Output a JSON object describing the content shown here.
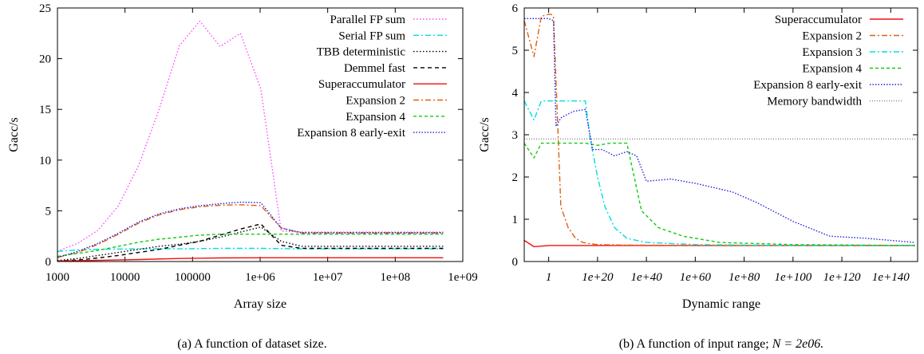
{
  "chart_data": [
    {
      "type": "line",
      "xscale": "log",
      "xlim": [
        1000,
        1000000000
      ],
      "ylim": [
        0,
        25
      ],
      "xlabel": "Array size",
      "ylabel": "Gacc/s",
      "xticks": [
        {
          "v": 1000,
          "label": "1000"
        },
        {
          "v": 10000,
          "label": "10000"
        },
        {
          "v": 100000,
          "label": "100000"
        },
        {
          "v": 1000000,
          "label": "1e+06"
        },
        {
          "v": 10000000,
          "label": "1e+07"
        },
        {
          "v": 100000000,
          "label": "1e+08"
        },
        {
          "v": 1000000000,
          "label": "1e+09"
        }
      ],
      "yticks": [
        {
          "v": 0,
          "label": "0"
        },
        {
          "v": 5,
          "label": "5"
        },
        {
          "v": 10,
          "label": "10"
        },
        {
          "v": 15,
          "label": "15"
        },
        {
          "v": 20,
          "label": "20"
        },
        {
          "v": 25,
          "label": "25"
        }
      ],
      "legend_position": "top-right",
      "caption": "(a) A function of dataset size.",
      "series": [
        {
          "name": "Parallel FP sum",
          "color": "#ff44ff",
          "dash": "1.5,2.5",
          "x": [
            1000,
            2000,
            4000,
            8000,
            16000,
            32000,
            64000,
            128000,
            256000,
            512000,
            1024000,
            2048000,
            4096000,
            16000000,
            64000000,
            512000000
          ],
          "y": [
            1.0,
            1.8,
            3.1,
            5.5,
            9.5,
            15.0,
            21.3,
            23.7,
            21.2,
            22.5,
            17.0,
            3.0,
            2.9,
            2.9,
            2.9,
            2.9
          ]
        },
        {
          "name": "Serial FP sum",
          "color": "#00dddd",
          "dash": "7,3,2,3",
          "x": [
            1000,
            2000,
            4000,
            16000,
            64000,
            256000,
            1024000,
            4096000,
            64000000,
            512000000
          ],
          "y": [
            1.0,
            1.15,
            1.2,
            1.25,
            1.25,
            1.3,
            1.3,
            1.25,
            1.25,
            1.25
          ]
        },
        {
          "name": "TBB deterministic",
          "color": "#000000",
          "dash": "1.5,2.5",
          "x": [
            1000,
            2000,
            4000,
            8000,
            16000,
            32000,
            64000,
            128000,
            256000,
            512000,
            1024000,
            2048000,
            4096000,
            16000000,
            64000000,
            512000000
          ],
          "y": [
            0.1,
            0.3,
            0.6,
            0.9,
            1.2,
            1.5,
            1.7,
            2.0,
            2.4,
            2.9,
            3.4,
            2.0,
            1.5,
            1.5,
            1.5,
            1.5
          ]
        },
        {
          "name": "Demmel fast",
          "color": "#000000",
          "dash": "5,4",
          "x": [
            1000,
            2000,
            4000,
            8000,
            16000,
            32000,
            64000,
            128000,
            256000,
            512000,
            1024000,
            2048000,
            4096000,
            16000000,
            64000000,
            512000000
          ],
          "y": [
            0.05,
            0.15,
            0.35,
            0.6,
            0.9,
            1.2,
            1.6,
            2.0,
            2.6,
            3.2,
            3.7,
            1.6,
            1.3,
            1.3,
            1.3,
            1.3
          ]
        },
        {
          "name": "Superaccumulator",
          "color": "#ee1111",
          "dash": "",
          "x": [
            1000,
            4000,
            16000,
            64000,
            256000,
            1024000,
            4096000,
            64000000,
            512000000
          ],
          "y": [
            0.05,
            0.12,
            0.2,
            0.3,
            0.35,
            0.37,
            0.37,
            0.37,
            0.37
          ]
        },
        {
          "name": "Expansion 2",
          "color": "#e06010",
          "dash": "7,3,2,3",
          "x": [
            1000,
            2000,
            4000,
            8000,
            16000,
            32000,
            64000,
            128000,
            256000,
            512000,
            1024000,
            2048000,
            4096000,
            16000000,
            64000000,
            512000000
          ],
          "y": [
            0.4,
            0.9,
            1.7,
            2.7,
            3.8,
            4.6,
            5.1,
            5.4,
            5.55,
            5.6,
            5.5,
            3.3,
            2.8,
            2.8,
            2.8,
            2.8
          ]
        },
        {
          "name": "Expansion 4",
          "color": "#11cc11",
          "dash": "4,3",
          "x": [
            1000,
            2000,
            4000,
            8000,
            16000,
            32000,
            64000,
            128000,
            256000,
            512000,
            1024000,
            2048000,
            4096000,
            16000000,
            64000000,
            512000000
          ],
          "y": [
            0.5,
            0.8,
            1.1,
            1.5,
            1.9,
            2.2,
            2.4,
            2.6,
            2.7,
            2.7,
            2.7,
            2.7,
            2.7,
            2.7,
            2.7,
            2.7
          ]
        },
        {
          "name": "Expansion 8 early-exit",
          "color": "#2222dd",
          "dash": "1.5,2",
          "x": [
            1000,
            2000,
            4000,
            8000,
            16000,
            32000,
            64000,
            128000,
            256000,
            512000,
            1024000,
            2048000,
            4096000,
            16000000,
            64000000,
            512000000
          ],
          "y": [
            0.4,
            1.0,
            1.8,
            2.8,
            3.9,
            4.7,
            5.2,
            5.5,
            5.7,
            5.85,
            5.8,
            3.3,
            2.85,
            2.85,
            2.85,
            2.85
          ]
        }
      ]
    },
    {
      "type": "line",
      "xscale": "linear",
      "xlim": [
        -10,
        151
      ],
      "ylim": [
        0,
        6
      ],
      "xlabel": "Dynamic range",
      "ylabel": "Gacc/s",
      "xticks": [
        {
          "v": 0,
          "label": "1"
        },
        {
          "v": 20,
          "label": "1e+20"
        },
        {
          "v": 40,
          "label": "1e+40"
        },
        {
          "v": 60,
          "label": "1e+60"
        },
        {
          "v": 80,
          "label": "1e+80"
        },
        {
          "v": 100,
          "label": "1e+100"
        },
        {
          "v": 120,
          "label": "1e+120"
        },
        {
          "v": 140,
          "label": "1e+140"
        }
      ],
      "yticks": [
        {
          "v": 0,
          "label": "0"
        },
        {
          "v": 1,
          "label": "1"
        },
        {
          "v": 2,
          "label": "2"
        },
        {
          "v": 3,
          "label": "3"
        },
        {
          "v": 4,
          "label": "4"
        },
        {
          "v": 5,
          "label": "5"
        },
        {
          "v": 6,
          "label": "6"
        }
      ],
      "legend_position": "top-right",
      "caption": "(b) A function of input range; ",
      "caption_math": "N = 2e06.",
      "series": [
        {
          "name": "Superaccumulator",
          "color": "#ee1111",
          "dash": "",
          "x": [
            -10,
            -6,
            0,
            10,
            20,
            40,
            60,
            100,
            150
          ],
          "y": [
            0.5,
            0.35,
            0.38,
            0.38,
            0.38,
            0.38,
            0.38,
            0.38,
            0.38
          ]
        },
        {
          "name": "Expansion 2",
          "color": "#e06010",
          "dash": "7,3,2,3",
          "x": [
            -10,
            -6,
            -3,
            0,
            1,
            2,
            5,
            8,
            11,
            14,
            17,
            20,
            30,
            60,
            100,
            150
          ],
          "y": [
            5.7,
            4.85,
            5.8,
            5.85,
            5.85,
            5.8,
            1.3,
            0.8,
            0.55,
            0.45,
            0.42,
            0.4,
            0.39,
            0.38,
            0.38,
            0.38
          ]
        },
        {
          "name": "Expansion 3",
          "color": "#00dddd",
          "dash": "7,3,2,3",
          "x": [
            -10,
            -6,
            -3,
            5,
            15,
            17,
            20,
            23,
            27,
            32,
            40,
            60,
            100,
            150
          ],
          "y": [
            3.8,
            3.35,
            3.8,
            3.8,
            3.8,
            2.9,
            2.0,
            1.3,
            0.8,
            0.55,
            0.45,
            0.4,
            0.38,
            0.38
          ]
        },
        {
          "name": "Expansion 4",
          "color": "#11cc11",
          "dash": "4,3",
          "x": [
            -10,
            -6,
            -3,
            5,
            15,
            20,
            25,
            32,
            38,
            45,
            55,
            70,
            100,
            150
          ],
          "y": [
            2.8,
            2.45,
            2.8,
            2.8,
            2.8,
            2.75,
            2.8,
            2.8,
            1.2,
            0.8,
            0.6,
            0.45,
            0.4,
            0.38
          ]
        },
        {
          "name": "Expansion 8 early-exit",
          "color": "#2222dd",
          "dash": "1.5,2",
          "x": [
            -10,
            -6,
            -3,
            0,
            2,
            3,
            5,
            10,
            15,
            18,
            22,
            27,
            32,
            36,
            40,
            50,
            60,
            75,
            85,
            100,
            115,
            130,
            150
          ],
          "y": [
            5.75,
            5.75,
            5.75,
            5.75,
            5.7,
            3.2,
            3.4,
            3.55,
            3.6,
            2.65,
            2.65,
            2.5,
            2.6,
            2.5,
            1.9,
            1.95,
            1.85,
            1.65,
            1.4,
            0.95,
            0.6,
            0.55,
            0.45
          ]
        },
        {
          "name": "Memory bandwidth",
          "color": "#888888",
          "dash": "1,2",
          "x": [
            -10,
            150
          ],
          "y": [
            2.9,
            2.9
          ]
        }
      ]
    }
  ]
}
